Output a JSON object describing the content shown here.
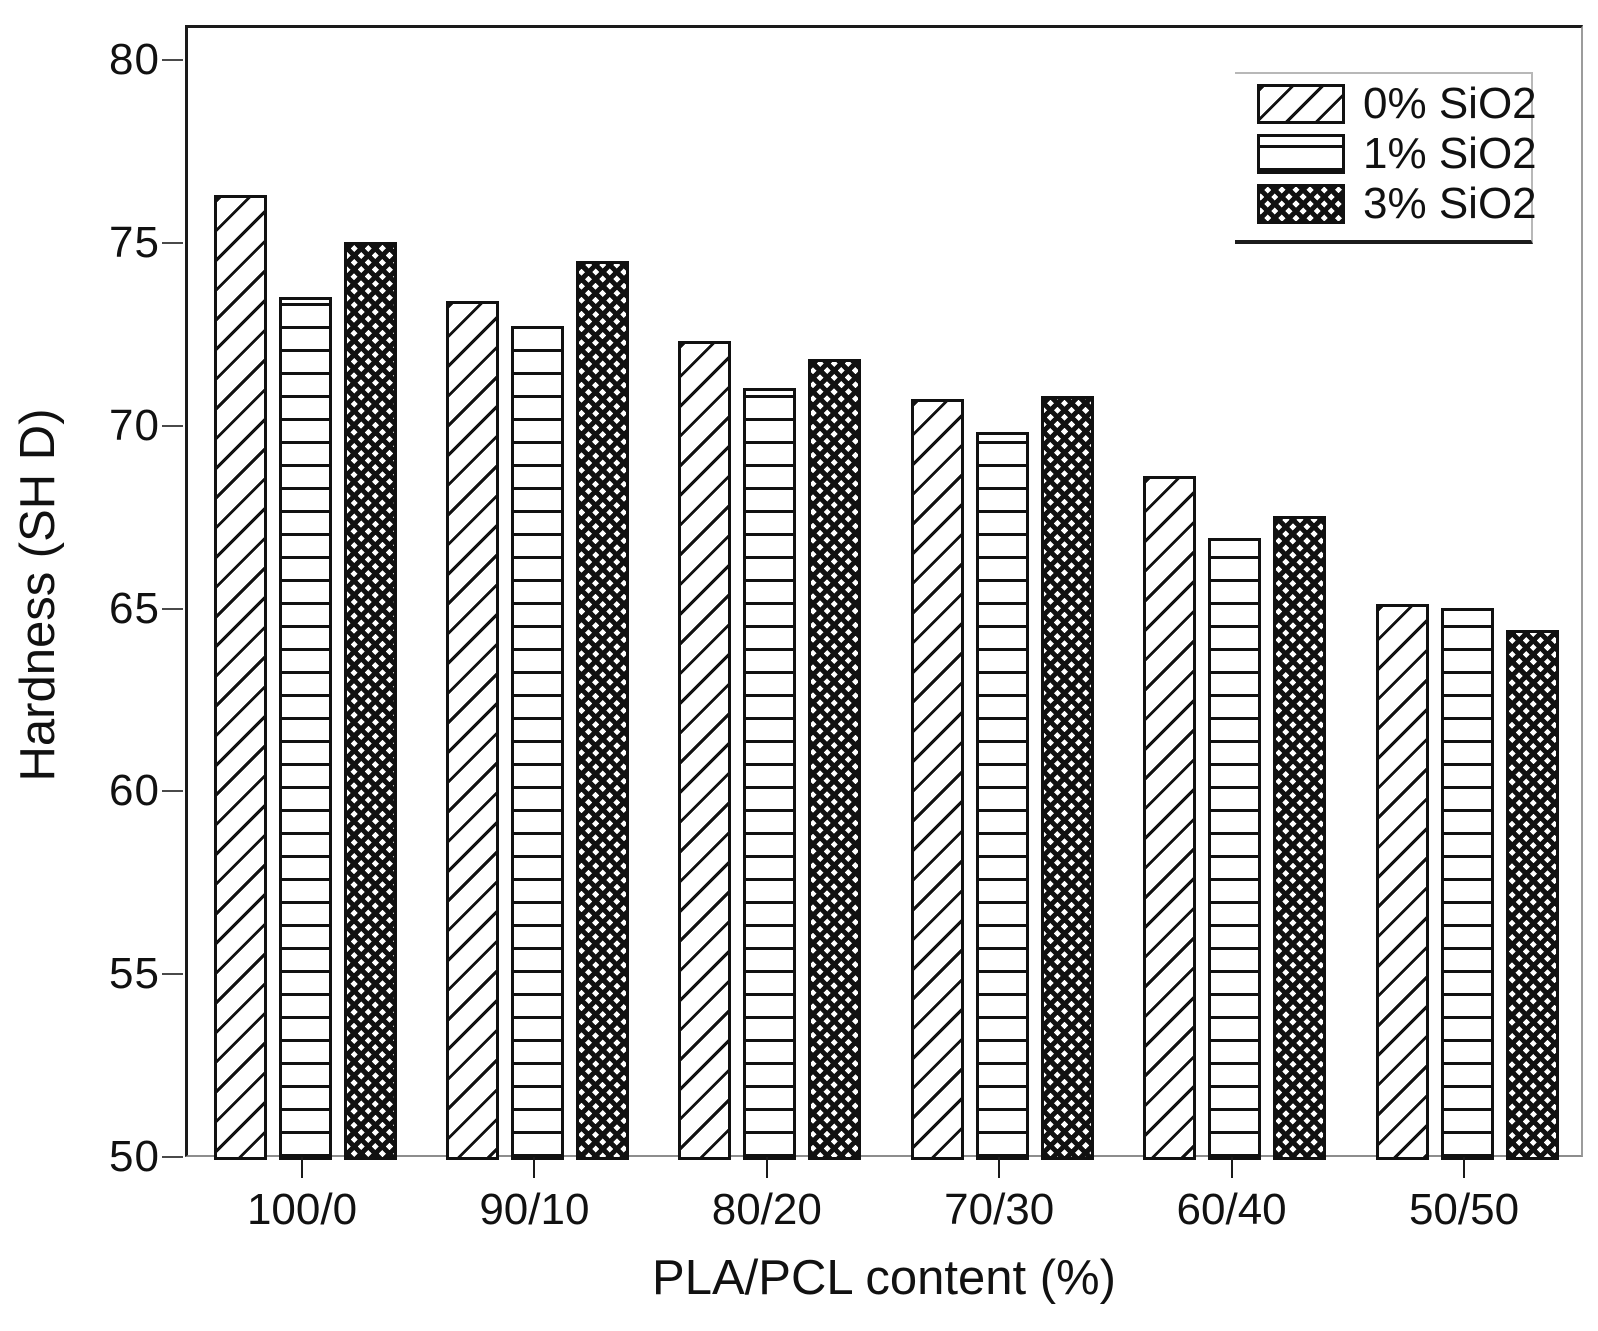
{
  "chart_data": {
    "type": "bar",
    "title": "",
    "categories": [
      "100/0",
      "90/10",
      "80/20",
      "70/30",
      "60/40",
      "50/50"
    ],
    "series": [
      {
        "name": "0% SiO2",
        "pattern": "diagonal",
        "values": [
          76.4,
          73.5,
          72.4,
          70.8,
          68.7,
          65.2
        ]
      },
      {
        "name": "1% SiO2",
        "pattern": "horizontal",
        "values": [
          73.6,
          72.8,
          71.1,
          69.9,
          67.0,
          65.1
        ]
      },
      {
        "name": "3% SiO2",
        "pattern": "crosshatch",
        "values": [
          75.1,
          74.6,
          71.9,
          70.9,
          67.6,
          64.5
        ]
      }
    ],
    "xlabel": "PLA/PCL content (%)",
    "ylabel": "Hardness (SH D)",
    "ylim": [
      50,
      80
    ],
    "yticks": [
      50,
      55,
      60,
      65,
      70,
      75,
      80
    ],
    "legend_position": "top-right",
    "grid": false
  },
  "legend": {
    "entries": [
      "0% SiO2",
      "1% SiO2",
      "3% SiO2"
    ]
  },
  "colors": {
    "bar_fill": "#ffffff",
    "bar_border": "#111111",
    "axis_dark": "#1a1a1a",
    "axis_light": "#9c9c9c",
    "text": "#111111",
    "background": "#ffffff"
  }
}
